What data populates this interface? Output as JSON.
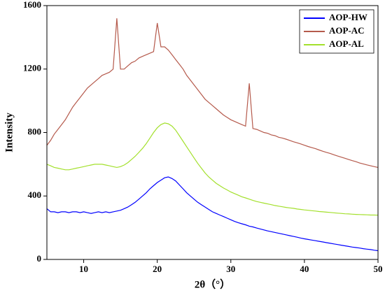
{
  "chart_data": {
    "type": "line",
    "xlabel": "2θ（°）",
    "ylabel": "Intensity",
    "xlim": [
      5,
      50
    ],
    "ylim": [
      0,
      1600
    ],
    "xticks": [
      10,
      20,
      30,
      40,
      50
    ],
    "yticks": [
      0,
      400,
      800,
      1200,
      1600
    ],
    "legend": "upper right",
    "x": [
      5,
      5.5,
      6,
      6.5,
      7,
      7.5,
      8,
      8.5,
      9,
      9.5,
      10,
      10.5,
      11,
      11.5,
      12,
      12.5,
      13,
      13.5,
      14,
      14.5,
      15,
      15.5,
      16,
      16.5,
      17,
      17.5,
      18,
      18.5,
      19,
      19.5,
      20,
      20.5,
      21,
      21.5,
      22,
      22.5,
      23,
      23.5,
      24,
      24.5,
      25,
      25.5,
      26,
      26.5,
      27,
      27.5,
      28,
      28.5,
      29,
      29.5,
      30,
      30.5,
      31,
      31.5,
      32,
      32.5,
      33,
      33.5,
      34,
      34.5,
      35,
      35.5,
      36,
      36.5,
      37,
      37.5,
      38,
      38.5,
      39,
      39.5,
      40,
      40.5,
      41,
      41.5,
      42,
      42.5,
      43,
      43.5,
      44,
      44.5,
      45,
      45.5,
      46,
      46.5,
      47,
      47.5,
      48,
      48.5,
      49,
      49.5,
      50
    ],
    "series": [
      {
        "name": "AOP-HW",
        "color": "#0000ff",
        "values": [
          320,
          300,
          300,
          295,
          300,
          300,
          295,
          300,
          300,
          295,
          300,
          295,
          290,
          295,
          300,
          295,
          300,
          295,
          300,
          305,
          310,
          320,
          330,
          345,
          360,
          380,
          400,
          420,
          445,
          465,
          485,
          500,
          515,
          520,
          510,
          495,
          470,
          445,
          420,
          400,
          380,
          360,
          345,
          330,
          315,
          300,
          290,
          280,
          270,
          260,
          250,
          240,
          232,
          225,
          218,
          210,
          205,
          198,
          192,
          186,
          180,
          175,
          170,
          165,
          160,
          155,
          150,
          145,
          140,
          135,
          130,
          126,
          122,
          118,
          114,
          110,
          106,
          102,
          98,
          94,
          90,
          86,
          82,
          78,
          75,
          72,
          68,
          65,
          62,
          58,
          55
        ]
      },
      {
        "name": "AOP-AC",
        "color": "#b55a4c",
        "values": [
          720,
          750,
          790,
          820,
          850,
          880,
          920,
          960,
          990,
          1020,
          1050,
          1080,
          1100,
          1120,
          1140,
          1160,
          1170,
          1180,
          1200,
          1520,
          1200,
          1200,
          1220,
          1240,
          1250,
          1270,
          1280,
          1290,
          1300,
          1310,
          1490,
          1340,
          1340,
          1320,
          1290,
          1260,
          1230,
          1200,
          1160,
          1130,
          1100,
          1070,
          1040,
          1010,
          990,
          970,
          950,
          930,
          910,
          895,
          880,
          870,
          860,
          850,
          840,
          1110,
          825,
          820,
          810,
          800,
          795,
          785,
          780,
          770,
          765,
          758,
          750,
          742,
          735,
          728,
          720,
          712,
          705,
          698,
          690,
          682,
          675,
          668,
          660,
          652,
          645,
          638,
          630,
          623,
          616,
          608,
          602,
          596,
          590,
          585,
          580
        ]
      },
      {
        "name": "AOP-AL",
        "color": "#a3e02c",
        "values": [
          600,
          590,
          580,
          575,
          570,
          565,
          565,
          570,
          575,
          580,
          585,
          590,
          595,
          600,
          600,
          600,
          595,
          590,
          585,
          580,
          585,
          595,
          610,
          630,
          650,
          675,
          700,
          730,
          765,
          800,
          830,
          850,
          860,
          855,
          840,
          815,
          780,
          745,
          710,
          675,
          640,
          605,
          575,
          545,
          520,
          500,
          480,
          465,
          450,
          438,
          425,
          415,
          405,
          395,
          388,
          380,
          372,
          365,
          360,
          355,
          350,
          345,
          340,
          336,
          332,
          328,
          325,
          322,
          318,
          315,
          312,
          310,
          307,
          305,
          302,
          300,
          298,
          296,
          294,
          292,
          290,
          288,
          287,
          285,
          284,
          283,
          282,
          281,
          280,
          280,
          279
        ]
      }
    ]
  }
}
